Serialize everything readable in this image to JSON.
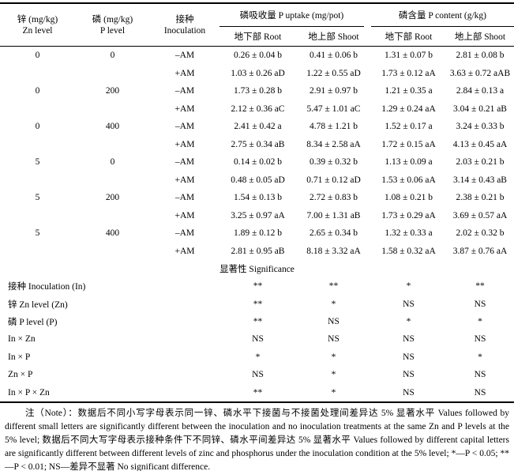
{
  "table": {
    "columns": {
      "zn_zh": "锌 (mg/kg)",
      "zn_en": "Zn level",
      "p_zh": "磷 (mg/kg)",
      "p_en": "P level",
      "inoc_zh": "接种",
      "inoc_en": "Inoculation",
      "uptake_group": "磷吸收量 P uptake (mg/pot)",
      "content_group": "磷含量 P content (g/kg)",
      "uptake_root": "地下部 Root",
      "uptake_shoot": "地上部 Shoot",
      "content_root": "地下部 Root",
      "content_shoot": "地上部 Shoot"
    },
    "rows": [
      {
        "zn": "0",
        "p": "0",
        "inoc": "–AM",
        "uptake_root": "0.26 ± 0.04 b",
        "uptake_shoot": "0.41 ± 0.06 b",
        "content_root": "1.31 ± 0.07 b",
        "content_shoot": "2.81 ± 0.08 b"
      },
      {
        "zn": "",
        "p": "",
        "inoc": "+AM",
        "uptake_root": "1.03 ± 0.26 aD",
        "uptake_shoot": "1.22 ± 0.55 aD",
        "content_root": "1.73 ± 0.12 aA",
        "content_shoot": "3.63 ± 0.72 aAB"
      },
      {
        "zn": "0",
        "p": "200",
        "inoc": "–AM",
        "uptake_root": "1.73 ± 0.28 b",
        "uptake_shoot": "2.91 ± 0.97 b",
        "content_root": "1.21 ± 0.35 a",
        "content_shoot": "2.84 ± 0.13 a"
      },
      {
        "zn": "",
        "p": "",
        "inoc": "+AM",
        "uptake_root": "2.12 ± 0.36 aC",
        "uptake_shoot": "5.47 ± 1.01 aC",
        "content_root": "1.29 ± 0.24 aA",
        "content_shoot": "3.04 ± 0.21 aB"
      },
      {
        "zn": "0",
        "p": "400",
        "inoc": "–AM",
        "uptake_root": "2.41 ± 0.42 a",
        "uptake_shoot": "4.78 ± 1.21 b",
        "content_root": "1.52 ± 0.17 a",
        "content_shoot": "3.24 ± 0.33 b"
      },
      {
        "zn": "",
        "p": "",
        "inoc": "+AM",
        "uptake_root": "2.75 ± 0.34 aB",
        "uptake_shoot": "8.34 ± 2.58 aA",
        "content_root": "1.72 ± 0.15 aA",
        "content_shoot": "4.13 ± 0.45 aA"
      },
      {
        "zn": "5",
        "p": "0",
        "inoc": "–AM",
        "uptake_root": "0.14 ± 0.02 b",
        "uptake_shoot": "0.39 ± 0.32 b",
        "content_root": "1.13 ± 0.09 a",
        "content_shoot": "2.03 ± 0.21 b"
      },
      {
        "zn": "",
        "p": "",
        "inoc": "+AM",
        "uptake_root": "0.48 ± 0.05 aD",
        "uptake_shoot": "0.71 ± 0.12 aD",
        "content_root": "1.53 ± 0.06 aA",
        "content_shoot": "3.14 ± 0.43 aB"
      },
      {
        "zn": "5",
        "p": "200",
        "inoc": "–AM",
        "uptake_root": "1.54 ± 0.13 b",
        "uptake_shoot": "2.72 ± 0.83 b",
        "content_root": "1.08 ± 0.21 b",
        "content_shoot": "2.38 ± 0.21 b"
      },
      {
        "zn": "",
        "p": "",
        "inoc": "+AM",
        "uptake_root": "3.25 ± 0.97 aA",
        "uptake_shoot": "7.00 ± 1.31 aB",
        "content_root": "1.73 ± 0.29 aA",
        "content_shoot": "3.69 ± 0.57 aA"
      },
      {
        "zn": "5",
        "p": "400",
        "inoc": "–AM",
        "uptake_root": "1.89 ± 0.12 b",
        "uptake_shoot": "2.65 ± 0.34 b",
        "content_root": "1.32 ± 0.33 a",
        "content_shoot": "2.02 ± 0.32 b"
      },
      {
        "zn": "",
        "p": "",
        "inoc": "+AM",
        "uptake_root": "2.81 ± 0.95 aB",
        "uptake_shoot": "8.18 ± 3.32 aA",
        "content_root": "1.58 ± 0.32 aA",
        "content_shoot": "3.87 ± 0.76 aA"
      }
    ],
    "significance": {
      "title": "显著性 Significance",
      "rows": [
        {
          "label": "接种 Inoculation (In)",
          "uptake_root": "**",
          "uptake_shoot": "**",
          "content_root": "*",
          "content_shoot": "**"
        },
        {
          "label": "锌 Zn level (Zn)",
          "uptake_root": "**",
          "uptake_shoot": "*",
          "content_root": "NS",
          "content_shoot": "NS"
        },
        {
          "label": "磷 P level (P)",
          "uptake_root": "**",
          "uptake_shoot": "NS",
          "content_root": "*",
          "content_shoot": "*"
        },
        {
          "label": "In × Zn",
          "uptake_root": "NS",
          "uptake_shoot": "NS",
          "content_root": "NS",
          "content_shoot": "NS"
        },
        {
          "label": "In × P",
          "uptake_root": "*",
          "uptake_shoot": "*",
          "content_root": "NS",
          "content_shoot": "*"
        },
        {
          "label": "Zn × P",
          "uptake_root": "NS",
          "uptake_shoot": "*",
          "content_root": "NS",
          "content_shoot": "NS"
        },
        {
          "label": "In × P × Zn",
          "uptake_root": "**",
          "uptake_shoot": "*",
          "content_root": "NS",
          "content_shoot": "NS"
        }
      ]
    }
  },
  "note": "注（Note）：数据后不同小写字母表示同一锌、磷水平下接菌与不接菌处理间差异达 5% 显著水平 Values followed by different small letters are significantly different between the inoculation and no inoculation treatments at the same Zn and P levels at the 5% level; 数据后不同大写字母表示接种条件下不同锌、磷水平间差异达 5% 显著水平 Values followed by different capital letters are significantly different between different levels of zinc and phosphorus under the inoculation condition at the 5% level; *—P < 0.05; **—P < 0.01; NS—差异不显著 No significant difference."
}
